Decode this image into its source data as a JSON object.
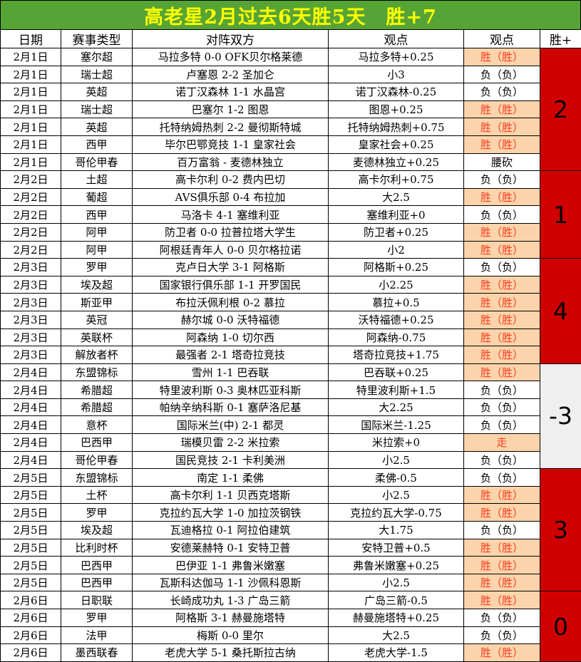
{
  "title": "高老星2月过去6天胜5天　胜+7",
  "columns": [
    "日期",
    "赛事类型",
    "对阵双方",
    "观点",
    "观点",
    "胜+"
  ],
  "colors": {
    "title_bg": "#57a436",
    "title_text": "#ffff00",
    "win_bg": "#fbd4ab",
    "win_text": "#f93d20",
    "score_red_bg": "#d10000",
    "score_gray_bg": "#efefef"
  },
  "rows": [
    {
      "date": "2月1日",
      "league": "塞尔超",
      "match": "马拉多特 0-0 OFK贝尔格莱德",
      "pick": "马拉多特+0.25",
      "result": "胜（胜）",
      "highlight": true
    },
    {
      "date": "2月1日",
      "league": "瑞士超",
      "match": "卢塞恩 2-2 圣加仑",
      "pick": "小3",
      "result": "负（负）",
      "highlight": false
    },
    {
      "date": "2月1日",
      "league": "英超",
      "match": "诺丁汉森林 1-1 水晶宫",
      "pick": "诺丁汉森林-0.25",
      "result": "负（负）",
      "highlight": false
    },
    {
      "date": "2月1日",
      "league": "瑞士超",
      "match": "巴塞尔 1-2 图恩",
      "pick": "图恩+0.25",
      "result": "胜（胜）",
      "highlight": true
    },
    {
      "date": "2月1日",
      "league": "英超",
      "match": "托特纳姆热刺 2-2 曼彻斯特城",
      "pick": "托特纳姆热刺+0.75",
      "result": "胜（胜）",
      "highlight": true
    },
    {
      "date": "2月1日",
      "league": "西甲",
      "match": "毕尔巴鄂竞技 1-1 皇家社会",
      "pick": "皇家社会+0.25",
      "result": "胜（胜）",
      "highlight": true
    },
    {
      "date": "2月1日",
      "league": "哥伦甲春",
      "match": "百万富翁 - 麦德林独立",
      "pick": "麦德林独立+0.25",
      "result": "腰砍",
      "highlight": false
    },
    {
      "date": "2月2日",
      "league": "土超",
      "match": "高卡尔利 0-2 费内巴切",
      "pick": "高卡尔利+0.75",
      "result": "负（负）",
      "highlight": false
    },
    {
      "date": "2月2日",
      "league": "葡超",
      "match": "AVS俱乐部 0-4 布拉加",
      "pick": "大2.5",
      "result": "胜（胜）",
      "highlight": true
    },
    {
      "date": "2月2日",
      "league": "西甲",
      "match": "马洛卡 4-1 塞维利亚",
      "pick": "塞维利亚+0",
      "result": "负（负）",
      "highlight": false
    },
    {
      "date": "2月2日",
      "league": "阿甲",
      "match": "防卫者 0-0 拉普拉塔大学生",
      "pick": "防卫者+0.25",
      "result": "胜（胜）",
      "highlight": true
    },
    {
      "date": "2月2日",
      "league": "阿甲",
      "match": "阿根廷青年人 0-0 贝尔格拉诺",
      "pick": "小2",
      "result": "胜（胜）",
      "highlight": true
    },
    {
      "date": "2月3日",
      "league": "罗甲",
      "match": "克卢日大学 3-1 阿格斯",
      "pick": "阿格斯+0.25",
      "result": "负（负）",
      "highlight": false
    },
    {
      "date": "2月3日",
      "league": "埃及超",
      "match": "国家银行俱乐部 1-1 开罗国民",
      "pick": "小2.25",
      "result": "胜（胜）",
      "highlight": true
    },
    {
      "date": "2月3日",
      "league": "斯亚甲",
      "match": "布拉沃佩利根 0-2 慕拉",
      "pick": "慕拉+0.5",
      "result": "胜（胜）",
      "highlight": true
    },
    {
      "date": "2月3日",
      "league": "英冠",
      "match": "赫尔城 0-0 沃特福德",
      "pick": "沃特福德+0.25",
      "result": "胜（胜）",
      "highlight": true
    },
    {
      "date": "2月3日",
      "league": "英联杯",
      "match": "阿森纳 1-0 切尔西",
      "pick": "阿森纳-0.75",
      "result": "胜（胜）",
      "highlight": true
    },
    {
      "date": "2月3日",
      "league": "解放者杯",
      "match": "最强者 2-1 塔奇拉竞技",
      "pick": "塔奇拉竞技+1.75",
      "result": "胜（胜）",
      "highlight": true
    },
    {
      "date": "2月4日",
      "league": "东盟锦标",
      "match": "雪州 1-1 巴吞联",
      "pick": "巴吞联+0.25",
      "result": "胜（胜）",
      "highlight": true
    },
    {
      "date": "2月4日",
      "league": "希腊超",
      "match": "特里波利斯 0-3 奥林匹亚科斯",
      "pick": "特里波利斯+1.5",
      "result": "负（负）",
      "highlight": false
    },
    {
      "date": "2月4日",
      "league": "希腊超",
      "match": "帕纳辛纳科斯 0-1 塞萨洛尼基",
      "pick": "大2.25",
      "result": "负（负）",
      "highlight": false
    },
    {
      "date": "2月4日",
      "league": "意杯",
      "match": "国际米兰(中) 2-1 都灵",
      "pick": "国际米兰-1.25",
      "result": "负（负）",
      "highlight": false
    },
    {
      "date": "2月4日",
      "league": "巴西甲",
      "match": "瑞模贝雷 2-2 米拉索",
      "pick": "米拉索+0",
      "result": "走",
      "highlight": true
    },
    {
      "date": "2月4日",
      "league": "哥伦甲春",
      "match": "国民竞技 2-1 卡利美洲",
      "pick": "小2.5",
      "result": "负（负）",
      "highlight": false
    },
    {
      "date": "2月5日",
      "league": "东盟锦标",
      "match": "南定 1-1 柔佛",
      "pick": "柔佛-0.5",
      "result": "负（负）",
      "highlight": false
    },
    {
      "date": "2月5日",
      "league": "土杯",
      "match": "高卡尔利 1-1 贝西克塔斯",
      "pick": "小2.5",
      "result": "胜（胜）",
      "highlight": true
    },
    {
      "date": "2月5日",
      "league": "罗甲",
      "match": "克拉约瓦大学 1-0 加拉茨钢铁",
      "pick": "克拉约瓦大学-0.75",
      "result": "胜（胜）",
      "highlight": true
    },
    {
      "date": "2月5日",
      "league": "埃及超",
      "match": "瓦迪格拉 0-1 阿拉伯建筑",
      "pick": "大1.75",
      "result": "负（负）",
      "highlight": false
    },
    {
      "date": "2月5日",
      "league": "比利时杯",
      "match": "安德莱赫特 0-1 安特卫普",
      "pick": "安特卫普+0.5",
      "result": "胜（胜）",
      "highlight": true
    },
    {
      "date": "2月5日",
      "league": "巴西甲",
      "match": "巴伊亚 1-1 弗鲁米嫩塞",
      "pick": "弗鲁米嫩塞+0.25",
      "result": "胜（胜）",
      "highlight": true
    },
    {
      "date": "2月5日",
      "league": "巴西甲",
      "match": "瓦斯科达伽马 1-1 沙佩科恩斯",
      "pick": "小2.5",
      "result": "胜（胜）",
      "highlight": true
    },
    {
      "date": "2月6日",
      "league": "日职联",
      "match": "长崎成功丸 1-3 广岛三箭",
      "pick": "广岛三箭-0.5",
      "result": "胜（胜）",
      "highlight": true
    },
    {
      "date": "2月6日",
      "league": "罗甲",
      "match": "阿格斯 3-1 赫曼施塔特",
      "pick": "赫曼施塔特+0.25",
      "result": "负（负）",
      "highlight": false
    },
    {
      "date": "2月6日",
      "league": "法甲",
      "match": "梅斯 0-0 里尔",
      "pick": "大2.5",
      "result": "负（负）",
      "highlight": false
    },
    {
      "date": "2月6日",
      "league": "墨西联春",
      "match": "老虎大学 5-1 桑托斯拉古纳",
      "pick": "老虎大学-1.5",
      "result": "胜（胜）",
      "highlight": true
    }
  ],
  "groups": [
    {
      "date": "2月1日",
      "span": 7,
      "value": "2",
      "tone": "red"
    },
    {
      "date": "2月2日",
      "span": 5,
      "value": "1",
      "tone": "red"
    },
    {
      "date": "2月3日",
      "span": 6,
      "value": "4",
      "tone": "red"
    },
    {
      "date": "2月4日",
      "span": 6,
      "value": "-3",
      "tone": "gray"
    },
    {
      "date": "2月5日",
      "span": 7,
      "value": "3",
      "tone": "red"
    },
    {
      "date": "2月6日",
      "span": 4,
      "value": "0",
      "tone": "red"
    }
  ]
}
